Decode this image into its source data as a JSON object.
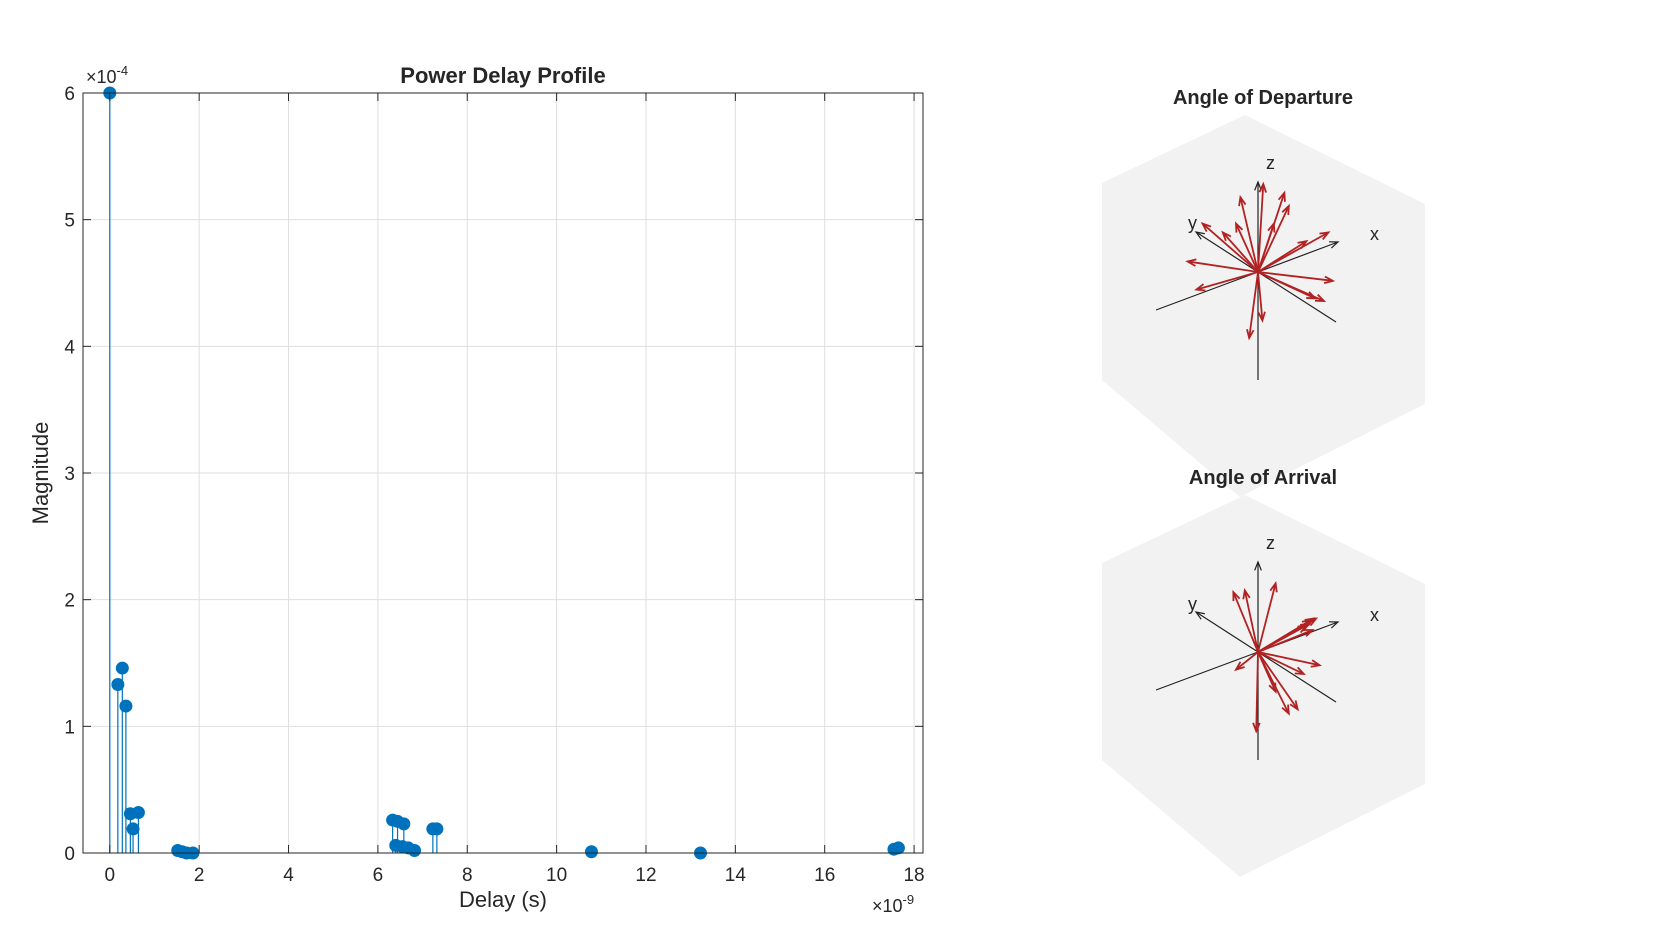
{
  "chart_data": [
    {
      "type": "stem",
      "title": "Power Delay Profile",
      "xlabel": "Delay (s)",
      "ylabel": "Magnitude",
      "x_exponent_label": "×10",
      "x_exponent": "-9",
      "y_exponent_label": "×10",
      "y_exponent": "-4",
      "xlim": [
        -0.6,
        18.2
      ],
      "ylim": [
        0,
        6
      ],
      "xticks": [
        0,
        2,
        4,
        6,
        8,
        10,
        12,
        14,
        16,
        18
      ],
      "yticks": [
        0,
        1,
        2,
        3,
        4,
        5,
        6
      ],
      "grid": true,
      "color": "#0072BD",
      "points": [
        {
          "x": 0.0,
          "y": 6.0
        },
        {
          "x": 0.18,
          "y": 1.33
        },
        {
          "x": 0.28,
          "y": 1.46
        },
        {
          "x": 0.36,
          "y": 1.16
        },
        {
          "x": 0.46,
          "y": 0.31
        },
        {
          "x": 0.52,
          "y": 0.19
        },
        {
          "x": 0.64,
          "y": 0.32
        },
        {
          "x": 1.52,
          "y": 0.02
        },
        {
          "x": 1.62,
          "y": 0.01
        },
        {
          "x": 1.72,
          "y": 0.0
        },
        {
          "x": 1.86,
          "y": 0.0
        },
        {
          "x": 6.33,
          "y": 0.26
        },
        {
          "x": 6.4,
          "y": 0.06
        },
        {
          "x": 6.44,
          "y": 0.25
        },
        {
          "x": 6.55,
          "y": 0.05
        },
        {
          "x": 6.58,
          "y": 0.23
        },
        {
          "x": 6.68,
          "y": 0.04
        },
        {
          "x": 6.82,
          "y": 0.02
        },
        {
          "x": 7.23,
          "y": 0.19
        },
        {
          "x": 7.32,
          "y": 0.19
        },
        {
          "x": 10.78,
          "y": 0.01
        },
        {
          "x": 13.22,
          "y": 0.0
        },
        {
          "x": 17.55,
          "y": 0.03
        },
        {
          "x": 17.65,
          "y": 0.04
        }
      ]
    },
    {
      "type": "quiver3d",
      "title": "Angle of Departure",
      "axis_labels": {
        "x": "x",
        "y": "y",
        "z": "z"
      },
      "arrow_color": "#B22222",
      "axis_color": "#222222",
      "panel_color": "#F2F2F2",
      "directions_screen": [
        [
          0.06,
          -1.0
        ],
        [
          0.35,
          -0.75
        ],
        [
          -0.2,
          -0.85
        ],
        [
          -0.63,
          -0.55
        ],
        [
          -0.4,
          -0.45
        ],
        [
          0.55,
          -0.35
        ],
        [
          0.8,
          -0.45
        ],
        [
          -0.8,
          -0.12
        ],
        [
          -0.7,
          0.2
        ],
        [
          0.85,
          0.1
        ],
        [
          0.65,
          0.3
        ],
        [
          0.75,
          0.33
        ],
        [
          -0.1,
          0.75
        ],
        [
          0.05,
          0.55
        ],
        [
          -0.25,
          -0.55
        ],
        [
          0.3,
          -0.9
        ],
        [
          0.18,
          -0.55
        ]
      ]
    },
    {
      "type": "quiver3d",
      "title": "Angle of Arrival",
      "axis_labels": {
        "x": "x",
        "y": "y",
        "z": "z"
      },
      "arrow_color": "#B22222",
      "axis_color": "#222222",
      "panel_color": "#F2F2F2",
      "directions_screen": [
        [
          -0.28,
          -0.68
        ],
        [
          -0.15,
          -0.7
        ],
        [
          0.2,
          -0.78
        ],
        [
          0.6,
          -0.36
        ],
        [
          0.63,
          -0.38
        ],
        [
          0.66,
          -0.38
        ],
        [
          0.58,
          -0.32
        ],
        [
          0.55,
          -0.3
        ],
        [
          0.62,
          -0.25
        ],
        [
          0.7,
          0.15
        ],
        [
          0.52,
          0.25
        ],
        [
          0.35,
          0.7
        ],
        [
          0.45,
          0.65
        ],
        [
          -0.02,
          0.9
        ],
        [
          -0.25,
          0.2
        ],
        [
          0.2,
          0.45
        ]
      ]
    }
  ]
}
